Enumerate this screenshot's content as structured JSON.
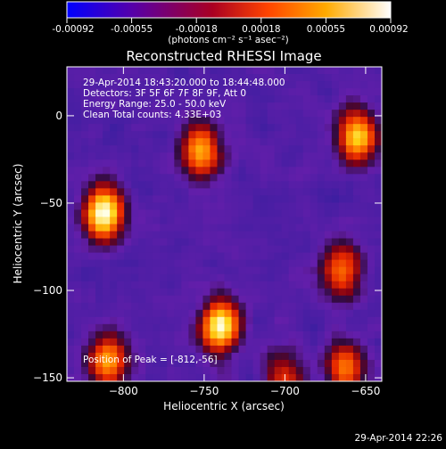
{
  "colorbar": {
    "ticks": [
      "-0.00092",
      "-0.00055",
      "-0.00018",
      "0.00018",
      "0.00055",
      "0.00092"
    ],
    "unit_label": "(photons cm⁻² s⁻¹ asec⁻²)",
    "range": [
      -0.00092,
      0.00092
    ],
    "colors": [
      "#0000ff",
      "#5500aa",
      "#aa0022",
      "#ff5500",
      "#ffaa00",
      "#ffffff"
    ]
  },
  "chart_data": {
    "type": "heatmap",
    "title": "Reconstructed RHESSI Image",
    "xlabel": "Heliocentric X (arcsec)",
    "ylabel": "Heliocentric Y (arcsec)",
    "xlim": [
      -835,
      -640
    ],
    "ylim": [
      -152,
      28
    ],
    "xticks": [
      -800,
      -750,
      -700,
      -650
    ],
    "yticks": [
      0,
      -50,
      -100,
      -150
    ],
    "xtick_labels": [
      "−800",
      "−750",
      "−700",
      "−650"
    ],
    "ytick_labels": [
      "0",
      "−50",
      "−100",
      "−150"
    ],
    "annotations": [
      "29-Apr-2014 18:43:20.000 to 18:44:48.000",
      "Detectors: 3F 5F 6F 7F 8F 9F, Att 0",
      "Energy Range: 25.0 - 50.0 keV",
      "Clean    Total counts: 4.33E+03"
    ],
    "peak_label": "Position of Peak = [-812,-56]",
    "peak": [
      -812,
      -56
    ],
    "sources": [
      {
        "x": -812,
        "y": -56,
        "value": 1.0
      },
      {
        "x": -740,
        "y": -120,
        "value": 0.93
      },
      {
        "x": -752,
        "y": -20,
        "value": 0.72
      },
      {
        "x": -655,
        "y": -12,
        "value": 0.78
      },
      {
        "x": -665,
        "y": -88,
        "value": 0.6
      },
      {
        "x": -810,
        "y": -140,
        "value": 0.68
      },
      {
        "x": -662,
        "y": -145,
        "value": 0.58
      },
      {
        "x": -700,
        "y": -150,
        "value": 0.45
      }
    ]
  },
  "timestamp": "29-Apr-2014 22:26"
}
